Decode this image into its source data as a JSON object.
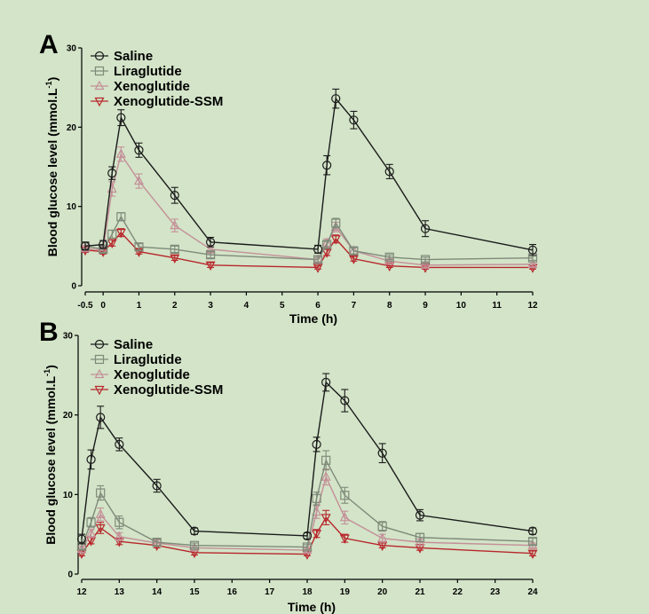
{
  "chart_data": [
    {
      "type": "line",
      "panel_label": "A",
      "xlabel": "Time (h)",
      "ylabel": "Blood glucose level (mmol.L",
      "ylabel_sup": "-1",
      "ylabel_close": ")",
      "xlim": [
        -0.5,
        12
      ],
      "ylim": [
        0,
        30
      ],
      "xticks": [
        -0.5,
        0,
        1,
        2,
        3,
        4,
        5,
        6,
        7,
        8,
        9,
        10,
        11,
        12
      ],
      "xtick_labels": [
        "-0.5",
        "0",
        "1",
        "2",
        "3",
        "4",
        "5",
        "6",
        "7",
        "8",
        "9",
        "10",
        "11",
        "12"
      ],
      "yticks": [
        0,
        10,
        20,
        30
      ],
      "ytick_labels": [
        "0",
        "10",
        "20",
        "30"
      ],
      "series": [
        {
          "name": "Saline",
          "color": "#1a1a1a",
          "marker": "circle",
          "x": [
            -0.5,
            0,
            0.25,
            0.5,
            1,
            2,
            3,
            6,
            6.25,
            6.5,
            7,
            8,
            9,
            12
          ],
          "y": [
            5.0,
            5.2,
            14.2,
            21.2,
            17.1,
            11.4,
            5.5,
            4.6,
            15.2,
            23.6,
            20.9,
            14.4,
            7.2,
            4.5
          ],
          "err": [
            0.5,
            0.5,
            0.8,
            1.0,
            0.9,
            1.0,
            0.6,
            0.5,
            1.2,
            1.2,
            1.1,
            0.9,
            1.0,
            0.7
          ]
        },
        {
          "name": "Liraglutide",
          "color": "#7f8a7a",
          "marker": "square",
          "x": [
            -0.5,
            0,
            0.25,
            0.5,
            1,
            2,
            3,
            6,
            6.25,
            6.5,
            7,
            8,
            9,
            12
          ],
          "y": [
            5.0,
            4.6,
            6.5,
            8.7,
            4.9,
            4.6,
            3.9,
            3.3,
            5.2,
            7.9,
            4.4,
            3.6,
            3.3,
            3.5
          ],
          "err": [
            0.4,
            0.4,
            0.5,
            0.5,
            0.4,
            0.4,
            0.4,
            0.3,
            0.4,
            0.6,
            0.4,
            0.3,
            0.3,
            0.3
          ]
        },
        {
          "name": "Xenoglutide",
          "color": "#c48f98",
          "marker": "triangle-up",
          "x": [
            -0.5,
            0,
            0.25,
            0.5,
            1,
            2,
            3,
            6,
            6.25,
            6.5,
            7,
            8,
            9,
            12
          ],
          "y": [
            4.7,
            4.5,
            12.2,
            16.6,
            13.2,
            7.6,
            4.6,
            3.3,
            5.4,
            7.4,
            4.4,
            3.1,
            2.6,
            2.7
          ],
          "err": [
            0.4,
            0.4,
            0.9,
            0.9,
            0.9,
            0.8,
            0.5,
            0.3,
            0.5,
            0.6,
            0.4,
            0.3,
            0.3,
            0.3
          ]
        },
        {
          "name": "Xenoglutide-SSM",
          "color": "#b8262b",
          "marker": "triangle-down",
          "x": [
            -0.5,
            0,
            0.25,
            0.5,
            1,
            2,
            3,
            6,
            6.25,
            6.5,
            7,
            8,
            9,
            12
          ],
          "y": [
            4.5,
            4.3,
            5.4,
            6.7,
            4.3,
            3.5,
            2.6,
            2.3,
            4.2,
            5.9,
            3.4,
            2.5,
            2.3,
            2.3
          ],
          "err": [
            0.3,
            0.3,
            0.4,
            0.5,
            0.3,
            0.3,
            0.3,
            0.2,
            0.4,
            0.5,
            0.3,
            0.2,
            0.2,
            0.2
          ]
        }
      ]
    },
    {
      "type": "line",
      "panel_label": "B",
      "xlabel": "Time (h)",
      "ylabel": "Blood glucose level (mmol.L",
      "ylabel_sup": "-1",
      "ylabel_close": ")",
      "xlim": [
        12,
        24
      ],
      "ylim": [
        0,
        30
      ],
      "xticks": [
        12,
        13,
        14,
        15,
        16,
        17,
        18,
        19,
        20,
        21,
        22,
        23,
        24
      ],
      "xtick_labels": [
        "12",
        "13",
        "14",
        "15",
        "16",
        "17",
        "18",
        "19",
        "20",
        "21",
        "22",
        "23",
        "24"
      ],
      "yticks": [
        0,
        10,
        20,
        30
      ],
      "ytick_labels": [
        "0",
        "10",
        "20",
        "30"
      ],
      "series": [
        {
          "name": "Saline",
          "color": "#1a1a1a",
          "marker": "circle",
          "x": [
            12,
            12.25,
            12.5,
            13,
            14,
            15,
            18,
            18.25,
            18.5,
            19,
            20,
            21,
            24
          ],
          "y": [
            4.4,
            14.4,
            19.7,
            16.3,
            11.1,
            5.4,
            4.8,
            16.3,
            24.1,
            21.8,
            15.2,
            7.4,
            5.4
          ],
          "err": [
            0.6,
            1.2,
            1.4,
            0.8,
            0.8,
            0.4,
            0.4,
            0.9,
            1.1,
            1.4,
            1.2,
            0.7,
            0.4
          ]
        },
        {
          "name": "Liraglutide",
          "color": "#7f8a7a",
          "marker": "square",
          "x": [
            12,
            12.25,
            12.5,
            13,
            14,
            15,
            18,
            18.25,
            18.5,
            19,
            20,
            21,
            24
          ],
          "y": [
            3.5,
            6.5,
            10.2,
            6.5,
            4.0,
            3.6,
            3.4,
            9.5,
            14.3,
            9.9,
            6.0,
            4.6,
            4.1
          ],
          "err": [
            0.4,
            0.6,
            0.9,
            0.8,
            0.4,
            0.3,
            0.3,
            0.8,
            1.2,
            1.0,
            0.6,
            0.5,
            0.4
          ]
        },
        {
          "name": "Xenoglutide",
          "color": "#c48f98",
          "marker": "triangle-up",
          "x": [
            12,
            12.25,
            12.5,
            13,
            14,
            15,
            18,
            18.25,
            18.5,
            19,
            20,
            21,
            24
          ],
          "y": [
            3.1,
            5.1,
            7.5,
            4.7,
            3.9,
            3.3,
            3.0,
            7.8,
            12.2,
            7.1,
            4.5,
            4.0,
            3.6
          ],
          "err": [
            0.4,
            0.5,
            0.8,
            0.5,
            0.4,
            0.3,
            0.3,
            0.8,
            1.0,
            0.8,
            0.5,
            0.4,
            0.3
          ]
        },
        {
          "name": "Xenoglutide-SSM",
          "color": "#b8262b",
          "marker": "triangle-down",
          "x": [
            12,
            12.25,
            12.5,
            13,
            14,
            15,
            18,
            18.25,
            18.5,
            19,
            20,
            21,
            24
          ],
          "y": [
            2.6,
            4.2,
            5.8,
            4.1,
            3.6,
            2.7,
            2.5,
            5.1,
            7.1,
            4.5,
            3.6,
            3.3,
            2.6
          ],
          "err": [
            0.3,
            0.4,
            0.7,
            0.4,
            0.3,
            0.3,
            0.2,
            0.5,
            0.9,
            0.5,
            0.3,
            0.3,
            0.3
          ]
        }
      ]
    }
  ]
}
